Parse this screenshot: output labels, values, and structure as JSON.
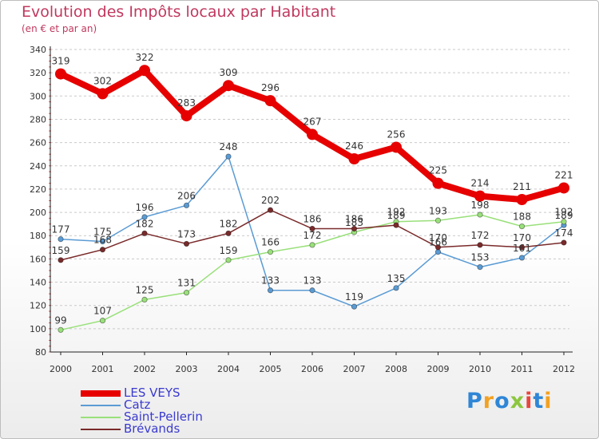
{
  "header": {
    "title": "Evolution des Impôts locaux par Habitant",
    "subtitle": "(en € et par an)"
  },
  "logo": {
    "text": "Proxiti",
    "letters": [
      "P",
      "r",
      "o",
      "x",
      "i",
      "t",
      "i"
    ],
    "colors": [
      "#2f86d6",
      "#f2a122",
      "#2f86d6",
      "#8cc63f",
      "#e8453c",
      "#2f86d6",
      "#f2a122"
    ]
  },
  "chart_data": {
    "type": "line",
    "title": "Evolution des Impôts locaux par Habitant",
    "subtitle": "(en € et par an)",
    "xlabel": "",
    "ylabel": "",
    "x": [
      "2000",
      "2001",
      "2002",
      "2003",
      "2004",
      "2005",
      "2006",
      "2007",
      "2008",
      "2009",
      "2010",
      "2011",
      "2012"
    ],
    "ylim": [
      80,
      340
    ],
    "yticks": [
      80,
      100,
      120,
      140,
      160,
      180,
      200,
      220,
      240,
      260,
      280,
      300,
      320,
      340
    ],
    "grid": "horizontal dashed",
    "legend_position": "bottom-left",
    "series": [
      {
        "name": "LES VEYS",
        "color": "#e60000",
        "emphasis": true,
        "values": [
          319,
          302,
          322,
          283,
          309,
          296,
          267,
          246,
          256,
          225,
          214,
          211,
          221
        ],
        "labels": [
          "319",
          "302",
          "322",
          "283",
          "309",
          "296",
          "267",
          "246",
          "256",
          "225",
          "214",
          "211",
          "221"
        ]
      },
      {
        "name": "Catz",
        "color": "#5a9bd4",
        "emphasis": false,
        "values": [
          177,
          175,
          196,
          206,
          248,
          133,
          133,
          119,
          135,
          166,
          153,
          161,
          189
        ],
        "labels": [
          "177",
          "175",
          "196",
          "206",
          "248",
          "133",
          "133",
          "119",
          "135",
          "166",
          "153",
          "161",
          "189"
        ]
      },
      {
        "name": "Saint-Pellerin",
        "color": "#99e07a",
        "emphasis": false,
        "values": [
          99,
          107,
          125,
          131,
          159,
          166,
          172,
          183,
          192,
          193,
          198,
          188,
          192
        ],
        "labels": [
          "99",
          "107",
          "125",
          "131",
          "159",
          "166",
          "172",
          "183",
          "192",
          "193",
          "198",
          "188",
          "192"
        ]
      },
      {
        "name": "Brévands",
        "color": "#7a2a2a",
        "emphasis": false,
        "values": [
          159,
          168,
          182,
          173,
          182,
          202,
          186,
          186,
          189,
          170,
          172,
          170,
          174
        ],
        "labels": [
          "159",
          "168",
          "182",
          "173",
          "182",
          "202",
          "186",
          "186",
          "189",
          "170",
          "172",
          "170",
          "174"
        ]
      }
    ]
  }
}
